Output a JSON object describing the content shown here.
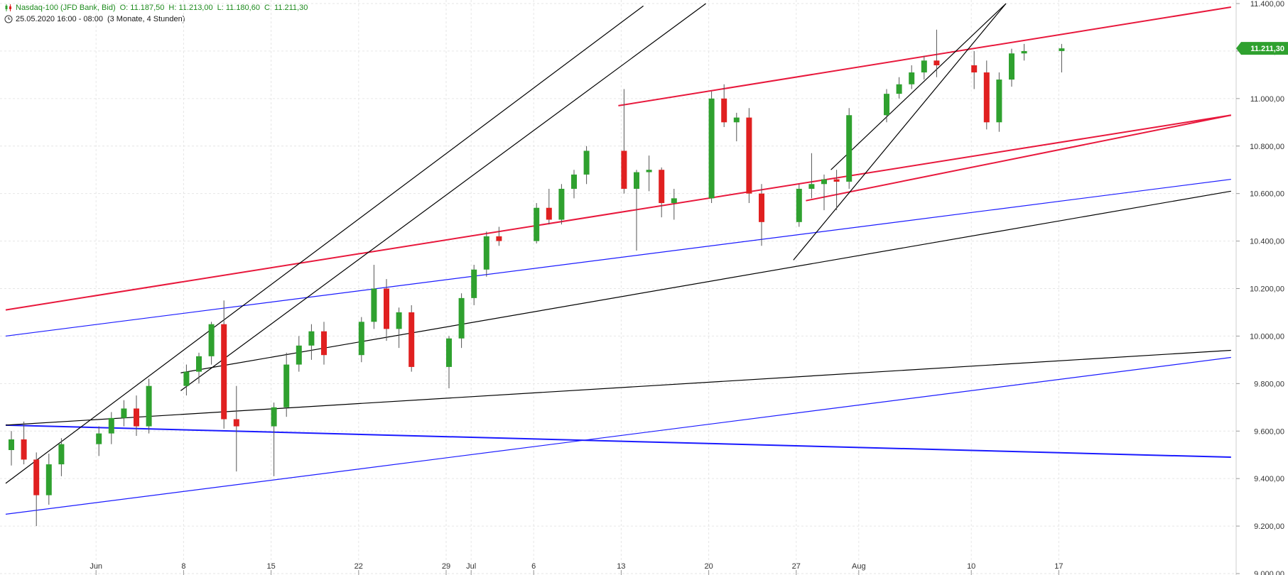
{
  "header": {
    "instrument": "Nasdaq-100 (JFD Bank, Bid)",
    "open": "O: 11.187,50",
    "high": "H: 11.213,00",
    "low": "L: 11.180,60",
    "close": "C: 11.211,30",
    "timestamp": "25.05.2020 16:00 - 08:00",
    "period": "(3 Monate, 4 Stunden)",
    "instrument_icon": "candlestick-icon",
    "time_icon": "clock-icon"
  },
  "colors": {
    "up": "#2fa12f",
    "down": "#e02020",
    "channel": "#e8183c",
    "blue": "#1a1aff",
    "black": "#000000",
    "grid": "#e6e6e6",
    "price_badge": "#2fa12f"
  },
  "chart_data": {
    "type": "candlestick",
    "title": "Nasdaq-100 (JFD Bank, Bid)",
    "timeframe": "4 Stunden",
    "x_labels": [
      "Jun",
      "8",
      "15",
      "22",
      "29",
      "Jul",
      "6",
      "13",
      "20",
      "27",
      "Aug",
      "10",
      "17"
    ],
    "ylim": [
      9000,
      11400
    ],
    "y_ticks": [
      "9.000,00",
      "9.200,00",
      "9.400,00",
      "9.600,00",
      "9.800,00",
      "10.000,00",
      "10.200,00",
      "10.400,00",
      "10.600,00",
      "10.800,00",
      "11.000,00",
      "11.200,00",
      "11.400,00"
    ],
    "last_price": "11.211,30",
    "candles": [
      {
        "date": "2020-05-25",
        "o": 9520,
        "h": 9600,
        "l": 9455,
        "c": 9565
      },
      {
        "date": "2020-05-26",
        "o": 9565,
        "h": 9640,
        "l": 9460,
        "c": 9480
      },
      {
        "date": "2020-05-27",
        "o": 9480,
        "h": 9510,
        "l": 9200,
        "c": 9330
      },
      {
        "date": "2020-05-28",
        "o": 9330,
        "h": 9505,
        "l": 9290,
        "c": 9460
      },
      {
        "date": "2020-05-29",
        "o": 9460,
        "h": 9570,
        "l": 9410,
        "c": 9545
      },
      {
        "date": "2020-06-01",
        "o": 9545,
        "h": 9620,
        "l": 9495,
        "c": 9590
      },
      {
        "date": "2020-06-02",
        "o": 9590,
        "h": 9680,
        "l": 9545,
        "c": 9655
      },
      {
        "date": "2020-06-03",
        "o": 9655,
        "h": 9730,
        "l": 9620,
        "c": 9695
      },
      {
        "date": "2020-06-04",
        "o": 9695,
        "h": 9750,
        "l": 9580,
        "c": 9620
      },
      {
        "date": "2020-06-05",
        "o": 9620,
        "h": 9820,
        "l": 9590,
        "c": 9790
      },
      {
        "date": "2020-06-08",
        "o": 9790,
        "h": 9880,
        "l": 9750,
        "c": 9850
      },
      {
        "date": "2020-06-09",
        "o": 9850,
        "h": 9930,
        "l": 9800,
        "c": 9915
      },
      {
        "date": "2020-06-10",
        "o": 9915,
        "h": 10060,
        "l": 9880,
        "c": 10050
      },
      {
        "date": "2020-06-11",
        "o": 10050,
        "h": 10150,
        "l": 9610,
        "c": 9650
      },
      {
        "date": "2020-06-12",
        "o": 9650,
        "h": 9790,
        "l": 9430,
        "c": 9620
      },
      {
        "date": "2020-06-15",
        "o": 9620,
        "h": 9720,
        "l": 9410,
        "c": 9700
      },
      {
        "date": "2020-06-16",
        "o": 9700,
        "h": 9930,
        "l": 9660,
        "c": 9880
      },
      {
        "date": "2020-06-17",
        "o": 9880,
        "h": 10000,
        "l": 9850,
        "c": 9960
      },
      {
        "date": "2020-06-18",
        "o": 9960,
        "h": 10050,
        "l": 9900,
        "c": 10020
      },
      {
        "date": "2020-06-19",
        "o": 10020,
        "h": 10060,
        "l": 9880,
        "c": 9920
      },
      {
        "date": "2020-06-22",
        "o": 9920,
        "h": 10080,
        "l": 9890,
        "c": 10060
      },
      {
        "date": "2020-06-23",
        "o": 10060,
        "h": 10300,
        "l": 10030,
        "c": 10200
      },
      {
        "date": "2020-06-24",
        "o": 10200,
        "h": 10240,
        "l": 9980,
        "c": 10030
      },
      {
        "date": "2020-06-25",
        "o": 10030,
        "h": 10120,
        "l": 9950,
        "c": 10100
      },
      {
        "date": "2020-06-26",
        "o": 10100,
        "h": 10130,
        "l": 9850,
        "c": 9870
      },
      {
        "date": "2020-06-29",
        "o": 9870,
        "h": 10000,
        "l": 9780,
        "c": 9990
      },
      {
        "date": "2020-06-30",
        "o": 9990,
        "h": 10180,
        "l": 9950,
        "c": 10160
      },
      {
        "date": "2020-07-01",
        "o": 10160,
        "h": 10300,
        "l": 10130,
        "c": 10280
      },
      {
        "date": "2020-07-02",
        "o": 10280,
        "h": 10440,
        "l": 10250,
        "c": 10420
      },
      {
        "date": "2020-07-03",
        "o": 10420,
        "h": 10460,
        "l": 10380,
        "c": 10400
      },
      {
        "date": "2020-07-06",
        "o": 10400,
        "h": 10560,
        "l": 10390,
        "c": 10540
      },
      {
        "date": "2020-07-07",
        "o": 10540,
        "h": 10620,
        "l": 10470,
        "c": 10490
      },
      {
        "date": "2020-07-08",
        "o": 10490,
        "h": 10640,
        "l": 10470,
        "c": 10620
      },
      {
        "date": "2020-07-09",
        "o": 10620,
        "h": 10700,
        "l": 10580,
        "c": 10680
      },
      {
        "date": "2020-07-10",
        "o": 10680,
        "h": 10800,
        "l": 10640,
        "c": 10780
      },
      {
        "date": "2020-07-13",
        "o": 10780,
        "h": 11040,
        "l": 10600,
        "c": 10620
      },
      {
        "date": "2020-07-14",
        "o": 10620,
        "h": 10700,
        "l": 10360,
        "c": 10690
      },
      {
        "date": "2020-07-15",
        "o": 10690,
        "h": 10760,
        "l": 10610,
        "c": 10700
      },
      {
        "date": "2020-07-16",
        "o": 10700,
        "h": 10710,
        "l": 10500,
        "c": 10560
      },
      {
        "date": "2020-07-17",
        "o": 10560,
        "h": 10620,
        "l": 10490,
        "c": 10580
      },
      {
        "date": "2020-07-20",
        "o": 10580,
        "h": 11030,
        "l": 10560,
        "c": 11000
      },
      {
        "date": "2020-07-21",
        "o": 11000,
        "h": 11060,
        "l": 10880,
        "c": 10900
      },
      {
        "date": "2020-07-22",
        "o": 10900,
        "h": 10940,
        "l": 10820,
        "c": 10920
      },
      {
        "date": "2020-07-23",
        "o": 10920,
        "h": 10960,
        "l": 10560,
        "c": 10600
      },
      {
        "date": "2020-07-24",
        "o": 10600,
        "h": 10640,
        "l": 10380,
        "c": 10480
      },
      {
        "date": "2020-07-27",
        "o": 10480,
        "h": 10640,
        "l": 10460,
        "c": 10620
      },
      {
        "date": "2020-07-28",
        "o": 10620,
        "h": 10770,
        "l": 10580,
        "c": 10640
      },
      {
        "date": "2020-07-29",
        "o": 10640,
        "h": 10680,
        "l": 10530,
        "c": 10660
      },
      {
        "date": "2020-07-30",
        "o": 10660,
        "h": 10700,
        "l": 10530,
        "c": 10650
      },
      {
        "date": "2020-07-31",
        "o": 10650,
        "h": 10960,
        "l": 10620,
        "c": 10930
      },
      {
        "date": "2020-08-03",
        "o": 10930,
        "h": 11040,
        "l": 10900,
        "c": 11020
      },
      {
        "date": "2020-08-04",
        "o": 11020,
        "h": 11090,
        "l": 11000,
        "c": 11060
      },
      {
        "date": "2020-08-05",
        "o": 11060,
        "h": 11140,
        "l": 11040,
        "c": 11110
      },
      {
        "date": "2020-08-06",
        "o": 11110,
        "h": 11180,
        "l": 11080,
        "c": 11160
      },
      {
        "date": "2020-08-07",
        "o": 11160,
        "h": 11290,
        "l": 11090,
        "c": 11140
      },
      {
        "date": "2020-08-10",
        "o": 11140,
        "h": 11200,
        "l": 11040,
        "c": 11110
      },
      {
        "date": "2020-08-11",
        "o": 11110,
        "h": 11160,
        "l": 10870,
        "c": 10900
      },
      {
        "date": "2020-08-12",
        "o": 10900,
        "h": 11110,
        "l": 10860,
        "c": 11080
      },
      {
        "date": "2020-08-13",
        "o": 11080,
        "h": 11210,
        "l": 11050,
        "c": 11190
      },
      {
        "date": "2020-08-14",
        "o": 11190,
        "h": 11230,
        "l": 11160,
        "c": 11200
      },
      {
        "date": "2020-08-17",
        "o": 11200,
        "h": 11230,
        "l": 11110,
        "c": 11211.3
      }
    ],
    "trendlines": [
      {
        "name": "channel-upper",
        "color": "red",
        "x1": "2020-07-13",
        "y1": 10970,
        "x2": "2020-08-31",
        "y2": 11385
      },
      {
        "name": "channel-middle",
        "color": "red",
        "x1": "2020-05-25",
        "y1": 10110,
        "x2": "2020-08-31",
        "y2": 10930
      },
      {
        "name": "channel-lower",
        "color": "red",
        "x1": "2020-07-28",
        "y1": 10570,
        "x2": "2020-08-31",
        "y2": 10930
      },
      {
        "name": "blue-upper",
        "color": "blue",
        "x1": "2020-05-25",
        "y1": 10000,
        "x2": "2020-08-31",
        "y2": 10660
      },
      {
        "name": "blue-lower",
        "color": "blue",
        "x1": "2020-05-25",
        "y1": 9250,
        "x2": "2020-08-31",
        "y2": 9910
      },
      {
        "name": "blue-horizontal",
        "color": "blue",
        "x1": "2020-05-25",
        "y1": 9625,
        "x2": "2020-08-31",
        "y2": 9490
      },
      {
        "name": "black-long",
        "color": "black",
        "x1": "2020-05-25",
        "y1": 9625,
        "x2": "2020-08-31",
        "y2": 9940
      },
      {
        "name": "black-mid",
        "color": "black",
        "x1": "2020-06-08",
        "y1": 9845,
        "x2": "2020-08-31",
        "y2": 10610
      },
      {
        "name": "black-steep-1",
        "color": "black",
        "x1": "2020-05-25",
        "y1": 9380,
        "x2": "2020-07-15",
        "y2": 11390
      },
      {
        "name": "black-steep-2",
        "color": "black",
        "x1": "2020-06-08",
        "y1": 9770,
        "x2": "2020-07-20",
        "y2": 11400
      },
      {
        "name": "black-steep-3",
        "color": "black",
        "x1": "2020-07-27",
        "y1": 10320,
        "x2": "2020-08-13",
        "y2": 11400
      },
      {
        "name": "black-steep-4",
        "color": "black",
        "x1": "2020-07-30",
        "y1": 10700,
        "x2": "2020-08-13",
        "y2": 11400
      }
    ]
  }
}
